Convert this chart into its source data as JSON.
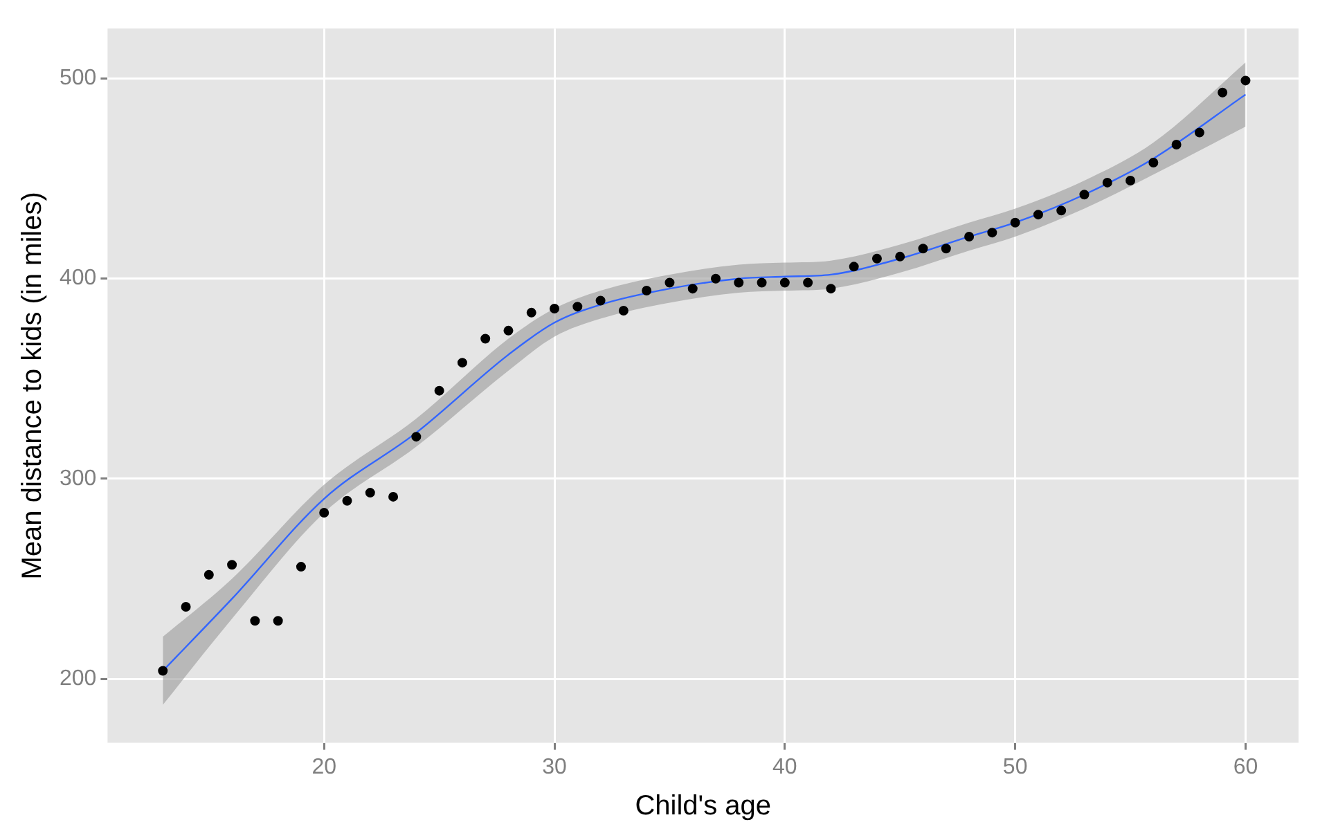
{
  "chart_data": {
    "type": "scatter",
    "xlabel": "Child's age",
    "ylabel": "Mean distance to kids (in miles)",
    "xlim": [
      10.6,
      62.3
    ],
    "ylim": [
      168,
      525
    ],
    "xticks": [
      20,
      30,
      40,
      50,
      60
    ],
    "yticks": [
      200,
      300,
      400,
      500
    ],
    "grid": true,
    "legend": false,
    "series": [
      {
        "color": "#000000",
        "marker": "circle",
        "x": [
          13,
          14,
          15,
          16,
          17,
          18,
          19,
          20,
          21,
          22,
          23,
          24,
          25,
          26,
          27,
          28,
          29,
          30,
          31,
          32,
          33,
          34,
          35,
          36,
          37,
          38,
          39,
          40,
          41,
          42,
          43,
          44,
          45,
          46,
          47,
          48,
          49,
          50,
          51,
          52,
          53,
          54,
          55,
          56,
          57,
          58,
          59,
          60
        ],
        "values": [
          204,
          236,
          252,
          257,
          229,
          229,
          256,
          283,
          289,
          293,
          291,
          321,
          344,
          358,
          370,
          374,
          383,
          385,
          386,
          389,
          384,
          394,
          398,
          395,
          400,
          398,
          398,
          398,
          398,
          395,
          406,
          410,
          411,
          415,
          415,
          421,
          423,
          428,
          432,
          434,
          442,
          448,
          449,
          458,
          467,
          473,
          493,
          499
        ]
      },
      {
        "type": "line",
        "color": "#3366ff",
        "marker": "none",
        "x": [
          13,
          16,
          20,
          24,
          28,
          30,
          32,
          35,
          38,
          40,
          42,
          45,
          48,
          50,
          53,
          56,
          60
        ],
        "values": [
          204,
          240,
          290,
          323,
          362,
          378,
          387,
          395,
          400,
          401,
          402,
          410,
          421,
          428,
          442,
          460,
          492
        ],
        "lower": [
          187,
          230,
          283,
          316,
          354,
          371,
          380,
          388,
          393,
          394,
          395,
          403,
          414,
          421,
          435,
          452,
          476
        ],
        "upper": [
          221,
          250,
          297,
          330,
          370,
          385,
          394,
          402,
          407,
          408,
          409,
          417,
          428,
          435,
          449,
          468,
          508
        ]
      }
    ]
  }
}
